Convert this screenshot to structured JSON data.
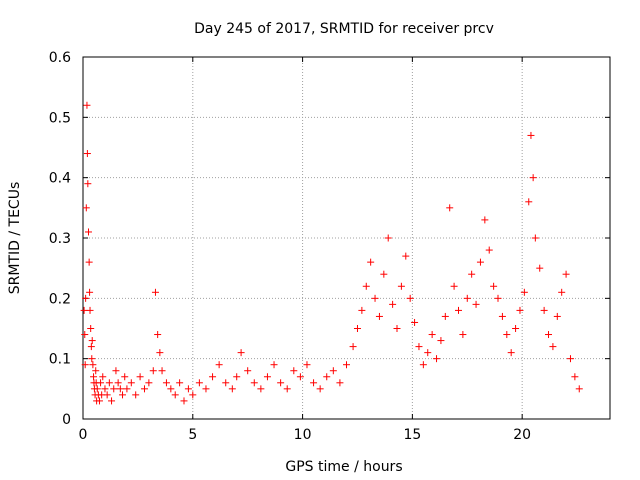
{
  "chart_data": {
    "type": "scatter",
    "title": "Day 245 of 2017, SRMTID for receiver prcv",
    "xlabel": "GPS time / hours",
    "ylabel": "SRMTID / TECUs",
    "xlim": [
      0,
      24
    ],
    "ylim": [
      0,
      0.6
    ],
    "xticks": [
      0,
      5,
      10,
      15,
      20
    ],
    "yticks": [
      0,
      0.1,
      0.2,
      0.3,
      0.4,
      0.5,
      0.6
    ],
    "xtick_labels": [
      "0",
      "5",
      "10",
      "15",
      "20"
    ],
    "ytick_labels": [
      "0",
      "0.1",
      "0.2",
      "0.3",
      "0.4",
      "0.5",
      "0.6"
    ],
    "grid": true,
    "marker": "+",
    "color": "#ff0000",
    "series": [
      {
        "name": "SRMTID",
        "x": [
          0.05,
          0.08,
          0.1,
          0.12,
          0.15,
          0.18,
          0.2,
          0.22,
          0.25,
          0.28,
          0.3,
          0.32,
          0.35,
          0.38,
          0.4,
          0.42,
          0.45,
          0.48,
          0.5,
          0.52,
          0.55,
          0.58,
          0.6,
          0.62,
          0.65,
          0.7,
          0.75,
          0.8,
          0.85,
          0.9,
          1.0,
          1.1,
          1.2,
          1.3,
          1.4,
          1.5,
          1.6,
          1.7,
          1.8,
          1.9,
          2.0,
          2.2,
          2.4,
          2.6,
          2.8,
          3.0,
          3.2,
          3.3,
          3.4,
          3.5,
          3.6,
          3.8,
          4.0,
          4.2,
          4.4,
          4.6,
          4.8,
          5.0,
          5.3,
          5.6,
          5.9,
          6.2,
          6.5,
          6.8,
          7.0,
          7.2,
          7.5,
          7.8,
          8.1,
          8.4,
          8.7,
          9.0,
          9.3,
          9.6,
          9.9,
          10.2,
          10.5,
          10.8,
          11.1,
          11.4,
          11.7,
          12.0,
          12.3,
          12.5,
          12.7,
          12.9,
          13.1,
          13.3,
          13.5,
          13.7,
          13.9,
          14.1,
          14.3,
          14.5,
          14.7,
          14.9,
          15.1,
          15.3,
          15.5,
          15.7,
          15.9,
          16.1,
          16.3,
          16.5,
          16.7,
          16.9,
          17.1,
          17.3,
          17.5,
          17.7,
          17.9,
          18.1,
          18.3,
          18.5,
          18.7,
          18.9,
          19.1,
          19.3,
          19.5,
          19.7,
          19.9,
          20.1,
          20.3,
          20.4,
          20.5,
          20.6,
          20.8,
          21.0,
          21.2,
          21.4,
          21.6,
          21.8,
          22.0,
          22.2,
          22.4,
          22.6
        ],
        "y": [
          0.18,
          0.14,
          0.09,
          0.2,
          0.35,
          0.52,
          0.44,
          0.39,
          0.31,
          0.26,
          0.21,
          0.18,
          0.15,
          0.12,
          0.1,
          0.13,
          0.09,
          0.07,
          0.06,
          0.05,
          0.04,
          0.08,
          0.06,
          0.03,
          0.05,
          0.04,
          0.03,
          0.06,
          0.04,
          0.07,
          0.05,
          0.04,
          0.06,
          0.03,
          0.05,
          0.08,
          0.06,
          0.05,
          0.04,
          0.07,
          0.05,
          0.06,
          0.04,
          0.07,
          0.05,
          0.06,
          0.08,
          0.21,
          0.14,
          0.11,
          0.08,
          0.06,
          0.05,
          0.04,
          0.06,
          0.03,
          0.05,
          0.04,
          0.06,
          0.05,
          0.07,
          0.09,
          0.06,
          0.05,
          0.07,
          0.11,
          0.08,
          0.06,
          0.05,
          0.07,
          0.09,
          0.06,
          0.05,
          0.08,
          0.07,
          0.09,
          0.06,
          0.05,
          0.07,
          0.08,
          0.06,
          0.09,
          0.12,
          0.15,
          0.18,
          0.22,
          0.26,
          0.2,
          0.17,
          0.24,
          0.3,
          0.19,
          0.15,
          0.22,
          0.27,
          0.2,
          0.16,
          0.12,
          0.09,
          0.11,
          0.14,
          0.1,
          0.13,
          0.17,
          0.35,
          0.22,
          0.18,
          0.14,
          0.2,
          0.24,
          0.19,
          0.26,
          0.33,
          0.28,
          0.22,
          0.2,
          0.17,
          0.14,
          0.11,
          0.15,
          0.18,
          0.21,
          0.36,
          0.47,
          0.4,
          0.3,
          0.25,
          0.18,
          0.14,
          0.12,
          0.17,
          0.21,
          0.24,
          0.1,
          0.07,
          0.05
        ]
      }
    ]
  }
}
